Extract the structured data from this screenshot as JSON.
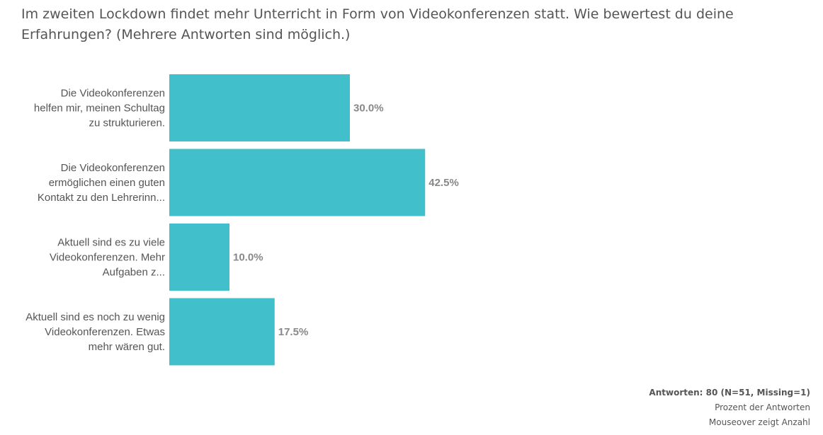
{
  "title": "Im zweiten Lockdown findet mehr Unterricht in Form von Videokonferenzen statt. Wie bewertest du deine Erfahrungen? (Mehrere Antworten sind möglich.)",
  "colors": {
    "bar": "#41bfca",
    "text": "#555555",
    "value_label": "#888888"
  },
  "chart_data": {
    "type": "bar",
    "orientation": "horizontal",
    "categories": [
      [
        "Die Videokonferenzen",
        "helfen mir, meinen Schultag",
        "zu strukturieren."
      ],
      [
        "Die Videokonferenzen",
        "ermöglichen einen guten",
        "Kontakt zu den Lehrerinn..."
      ],
      [
        "Aktuell sind es zu viele",
        "Videokonferenzen. Mehr",
        "Aufgaben z..."
      ],
      [
        "Aktuell sind es noch zu wenig",
        "Videokonferenzen. Etwas",
        "mehr wären gut."
      ]
    ],
    "values": [
      30.0,
      42.5,
      10.0,
      17.5
    ],
    "value_labels": [
      "30.0%",
      "42.5%",
      "10.0%",
      "17.5%"
    ],
    "unit": "%",
    "grid": false,
    "legend": "none"
  },
  "footer": {
    "responses": "Antworten: 80 (N=51, Missing=1)",
    "percent_note": "Prozent der Antworten",
    "mouseover_note": "Mouseover zeigt Anzahl"
  }
}
